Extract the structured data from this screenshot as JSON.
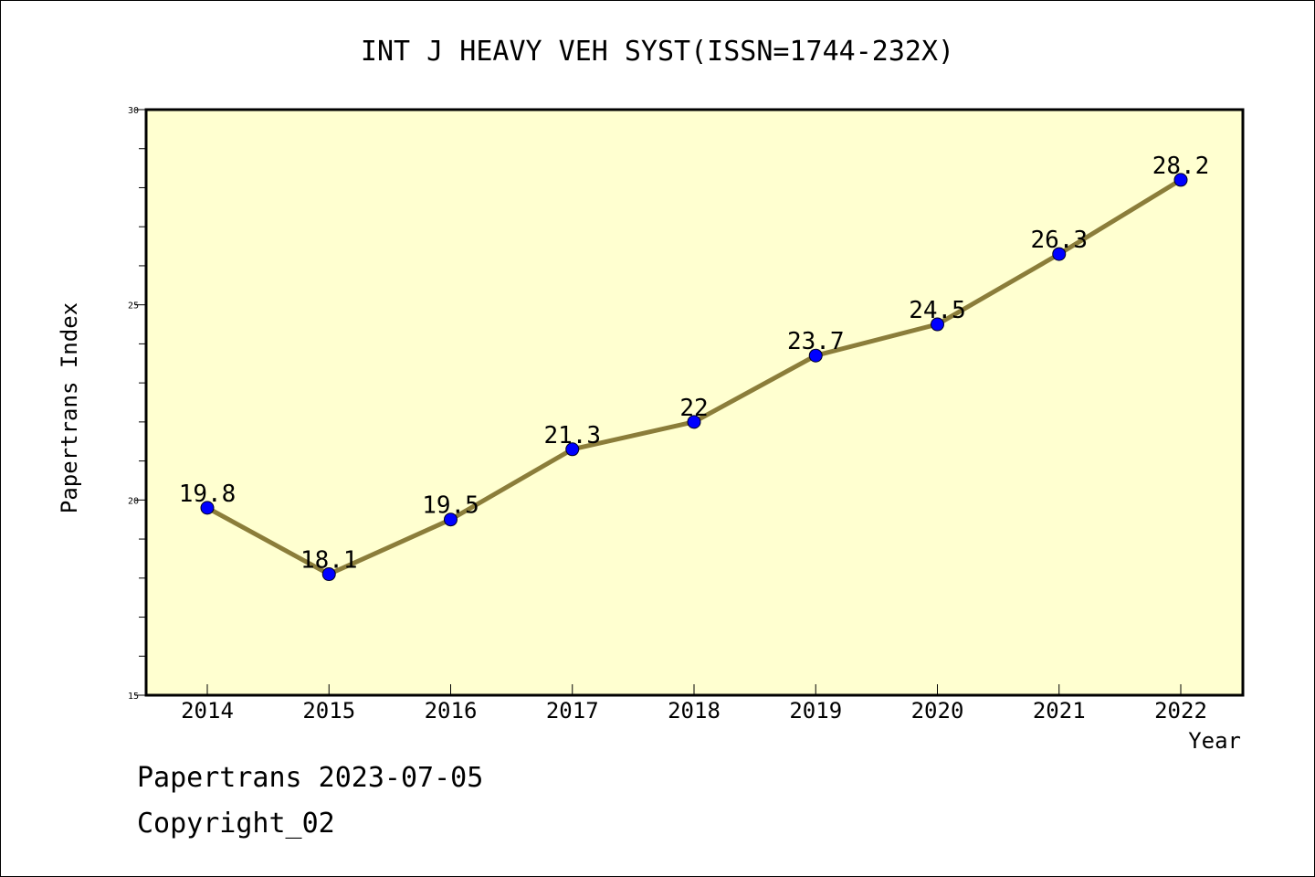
{
  "chart_data": {
    "type": "line",
    "title": "INT J HEAVY VEH SYST(ISSN=1744-232X)",
    "xlabel": "Year",
    "ylabel": "Papertrans Index",
    "x": [
      "2014",
      "2015",
      "2016",
      "2017",
      "2018",
      "2019",
      "2020",
      "2021",
      "2022"
    ],
    "series": [
      {
        "values": [
          19.8,
          18.1,
          19.5,
          21.3,
          22,
          23.7,
          24.5,
          26.3,
          28.2
        ],
        "labels": [
          "19.8",
          "18.1",
          "19.5",
          "21.3",
          "22",
          "23.7",
          "24.5",
          "26.3",
          "28.2"
        ],
        "line_color": "#8b7d3a",
        "marker_color": "#0000ff"
      }
    ],
    "ylim": [
      15,
      30
    ],
    "y_ticks": [
      "15",
      "20",
      "25",
      "30"
    ],
    "plot_background": "#ffffd0",
    "grid": false,
    "legend": "none"
  },
  "footer": {
    "source": "Papertrans 2023-07-05",
    "copyright": "Copyright_02"
  }
}
